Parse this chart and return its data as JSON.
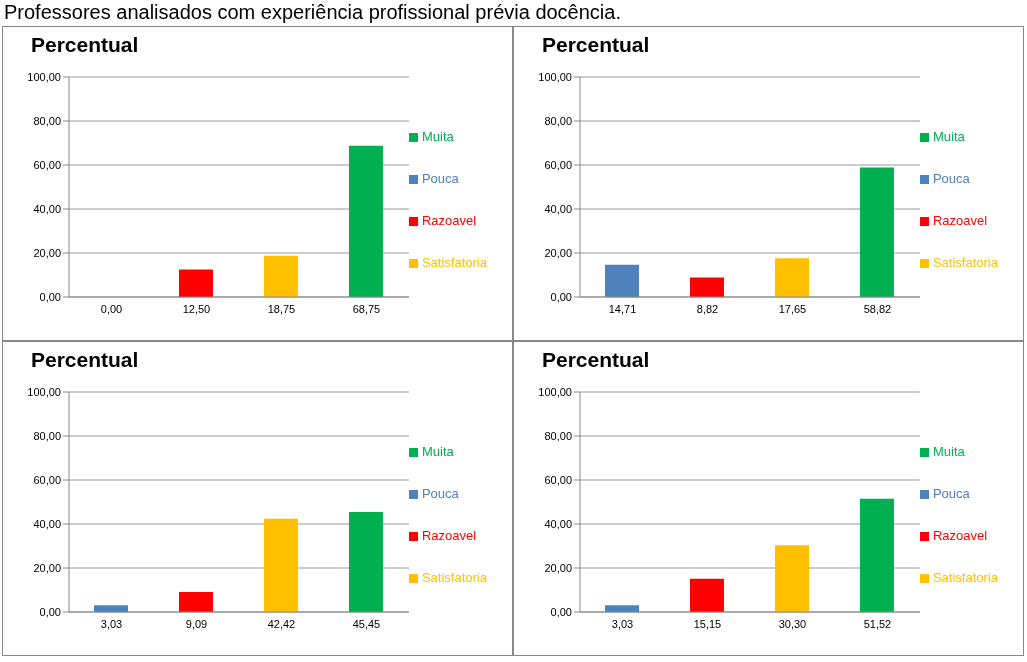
{
  "chart_data": [
    {
      "type": "bar",
      "title": "Percentual",
      "annotations": [
        "Professores analisados com experiência profissional prévia docência."
      ],
      "categories": [
        "0,00",
        "12,50",
        "18,75",
        "68,75"
      ],
      "stacked": true,
      "ylim": [
        0,
        100
      ],
      "yticks": [
        {
          "value": 0,
          "label": "0,00"
        },
        {
          "value": 20,
          "label": "20,00"
        },
        {
          "value": 40,
          "label": "40,00"
        },
        {
          "value": 60,
          "label": "60,00"
        },
        {
          "value": 80,
          "label": "80,00"
        },
        {
          "value": 100,
          "label": "100,00"
        }
      ],
      "grid": "y",
      "legend": "right",
      "series": [
        {
          "name": "Pouca",
          "color": "#4f81bd",
          "values": [
            0,
            null,
            null,
            null
          ]
        },
        {
          "name": "Razoavel",
          "color": "#ff0000",
          "values": [
            null,
            12.5,
            null,
            null
          ]
        },
        {
          "name": "Satisfatoria",
          "color": "#ffc000",
          "values": [
            null,
            null,
            18.75,
            null
          ]
        },
        {
          "name": "Muita",
          "color": "#00b050",
          "values": [
            null,
            null,
            null,
            68.75
          ]
        }
      ]
    },
    {
      "type": "bar",
      "title": "Percentual",
      "categories": [
        "14,71",
        "8,82",
        "17,65",
        "58,82"
      ],
      "stacked": true,
      "ylim": [
        0,
        100
      ],
      "yticks": [
        {
          "value": 0,
          "label": "0,00"
        },
        {
          "value": 20,
          "label": "20,00"
        },
        {
          "value": 40,
          "label": "40,00"
        },
        {
          "value": 60,
          "label": "60,00"
        },
        {
          "value": 80,
          "label": "80,00"
        },
        {
          "value": 100,
          "label": "100,00"
        }
      ],
      "grid": "y",
      "legend": "right",
      "series": [
        {
          "name": "Pouca",
          "color": "#4f81bd",
          "values": [
            14.71,
            null,
            null,
            null
          ]
        },
        {
          "name": "Razoavel",
          "color": "#ff0000",
          "values": [
            null,
            8.82,
            null,
            null
          ]
        },
        {
          "name": "Satisfatoria",
          "color": "#ffc000",
          "values": [
            null,
            null,
            17.65,
            null
          ]
        },
        {
          "name": "Muita",
          "color": "#00b050",
          "values": [
            null,
            null,
            null,
            58.82
          ]
        }
      ]
    },
    {
      "type": "bar",
      "title": "Percentual",
      "categories": [
        "3,03",
        "9,09",
        "42,42",
        "45,45"
      ],
      "stacked": true,
      "ylim": [
        0,
        100
      ],
      "yticks": [
        {
          "value": 0,
          "label": "0,00"
        },
        {
          "value": 20,
          "label": "20,00"
        },
        {
          "value": 40,
          "label": "40,00"
        },
        {
          "value": 60,
          "label": "60,00"
        },
        {
          "value": 80,
          "label": "80,00"
        },
        {
          "value": 100,
          "label": "100,00"
        }
      ],
      "grid": "y",
      "legend": "right",
      "series": [
        {
          "name": "Pouca",
          "color": "#4f81bd",
          "values": [
            3.03,
            null,
            null,
            null
          ]
        },
        {
          "name": "Razoavel",
          "color": "#ff0000",
          "values": [
            null,
            9.09,
            null,
            null
          ]
        },
        {
          "name": "Satisfatoria",
          "color": "#ffc000",
          "values": [
            null,
            null,
            42.42,
            null
          ]
        },
        {
          "name": "Muita",
          "color": "#00b050",
          "values": [
            null,
            null,
            null,
            45.45
          ]
        }
      ]
    },
    {
      "type": "bar",
      "title": "Percentual",
      "categories": [
        "3,03",
        "15,15",
        "30,30",
        "51,52"
      ],
      "stacked": true,
      "ylim": [
        0,
        100
      ],
      "yticks": [
        {
          "value": 0,
          "label": "0,00"
        },
        {
          "value": 20,
          "label": "20,00"
        },
        {
          "value": 40,
          "label": "40,00"
        },
        {
          "value": 60,
          "label": "60,00"
        },
        {
          "value": 80,
          "label": "80,00"
        },
        {
          "value": 100,
          "label": "100,00"
        }
      ],
      "grid": "y",
      "legend": "right",
      "series": [
        {
          "name": "Pouca",
          "color": "#4f81bd",
          "values": [
            3.03,
            null,
            null,
            null
          ]
        },
        {
          "name": "Razoavel",
          "color": "#ff0000",
          "values": [
            null,
            15.15,
            null,
            null
          ]
        },
        {
          "name": "Satisfatoria",
          "color": "#ffc000",
          "values": [
            null,
            null,
            30.3,
            null
          ]
        },
        {
          "name": "Muita",
          "color": "#00b050",
          "values": [
            null,
            null,
            null,
            51.52
          ]
        }
      ]
    }
  ]
}
